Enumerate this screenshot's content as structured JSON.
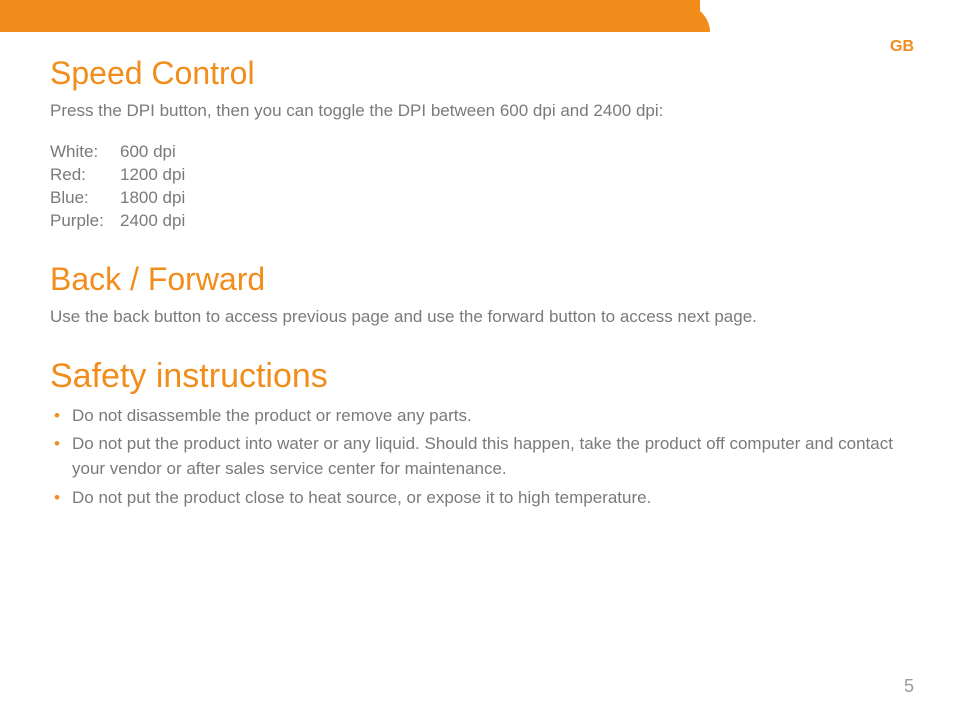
{
  "colors": {
    "accent": "#f28c1a",
    "body_text": "#7a7a7a",
    "page_number": "#9a9a9a",
    "background": "#ffffff"
  },
  "language_badge": "GB",
  "page_number": "5",
  "sections": {
    "speed": {
      "title": "Speed Control",
      "intro": "Press the DPI button, then you can toggle the DPI between 600 dpi and 2400 dpi:",
      "rows": [
        {
          "color": "White:",
          "value": "600 dpi"
        },
        {
          "color": "Red:",
          "value": "1200 dpi"
        },
        {
          "color": "Blue:",
          "value": "1800 dpi"
        },
        {
          "color": "Purple:",
          "value": "2400 dpi"
        }
      ]
    },
    "backforward": {
      "title": "Back / Forward",
      "text": "Use the back button to access previous page and use the forward button to access next page."
    },
    "safety": {
      "title": "Safety instructions",
      "items": [
        "Do not disassemble the product or remove any parts.",
        "Do not put the product into water or any liquid. Should this happen, take the product off computer and contact your vendor or after sales service center for maintenance.",
        "Do not put the product close to heat source, or expose it to high temperature."
      ]
    }
  }
}
